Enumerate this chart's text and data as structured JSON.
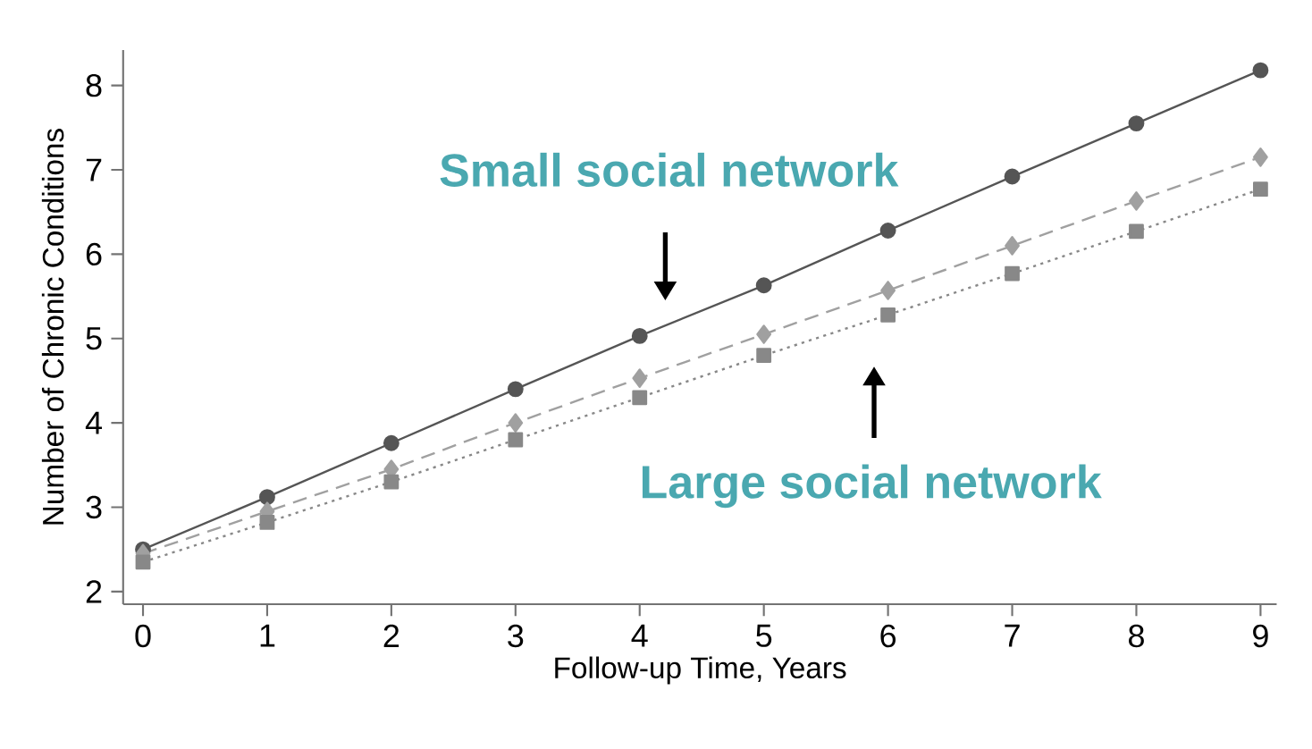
{
  "chart_data": {
    "type": "line",
    "xlabel": "Follow-up Time, Years",
    "ylabel": "Number of Chronic Conditions",
    "x": [
      0,
      1,
      2,
      3,
      4,
      5,
      6,
      7,
      8,
      9
    ],
    "series": [
      {
        "color": "#555555",
        "marker": "circle",
        "line_style": "solid",
        "values": [
          2.5,
          3.12,
          3.76,
          4.4,
          5.03,
          5.63,
          6.28,
          6.92,
          7.55,
          8.18
        ]
      },
      {
        "color": "#a0a0a0",
        "marker": "diamond",
        "line_style": "dashed",
        "values": [
          2.45,
          2.95,
          3.45,
          4.0,
          4.53,
          5.05,
          5.57,
          6.1,
          6.63,
          7.15
        ]
      },
      {
        "color": "#888888",
        "marker": "square",
        "line_style": "dotted",
        "values": [
          2.35,
          2.82,
          3.3,
          3.8,
          4.3,
          4.8,
          5.28,
          5.77,
          6.27,
          6.77
        ]
      }
    ],
    "xlim": [
      -0.16,
      9.13
    ],
    "ylim": [
      1.85,
      8.42
    ],
    "xticks": [
      0,
      1,
      2,
      3,
      4,
      5,
      6,
      7,
      8,
      9
    ],
    "yticks": [
      2,
      3,
      4,
      5,
      6,
      7,
      8
    ],
    "grid": false,
    "annotations": [
      "Small social network",
      "Large social network"
    ]
  }
}
